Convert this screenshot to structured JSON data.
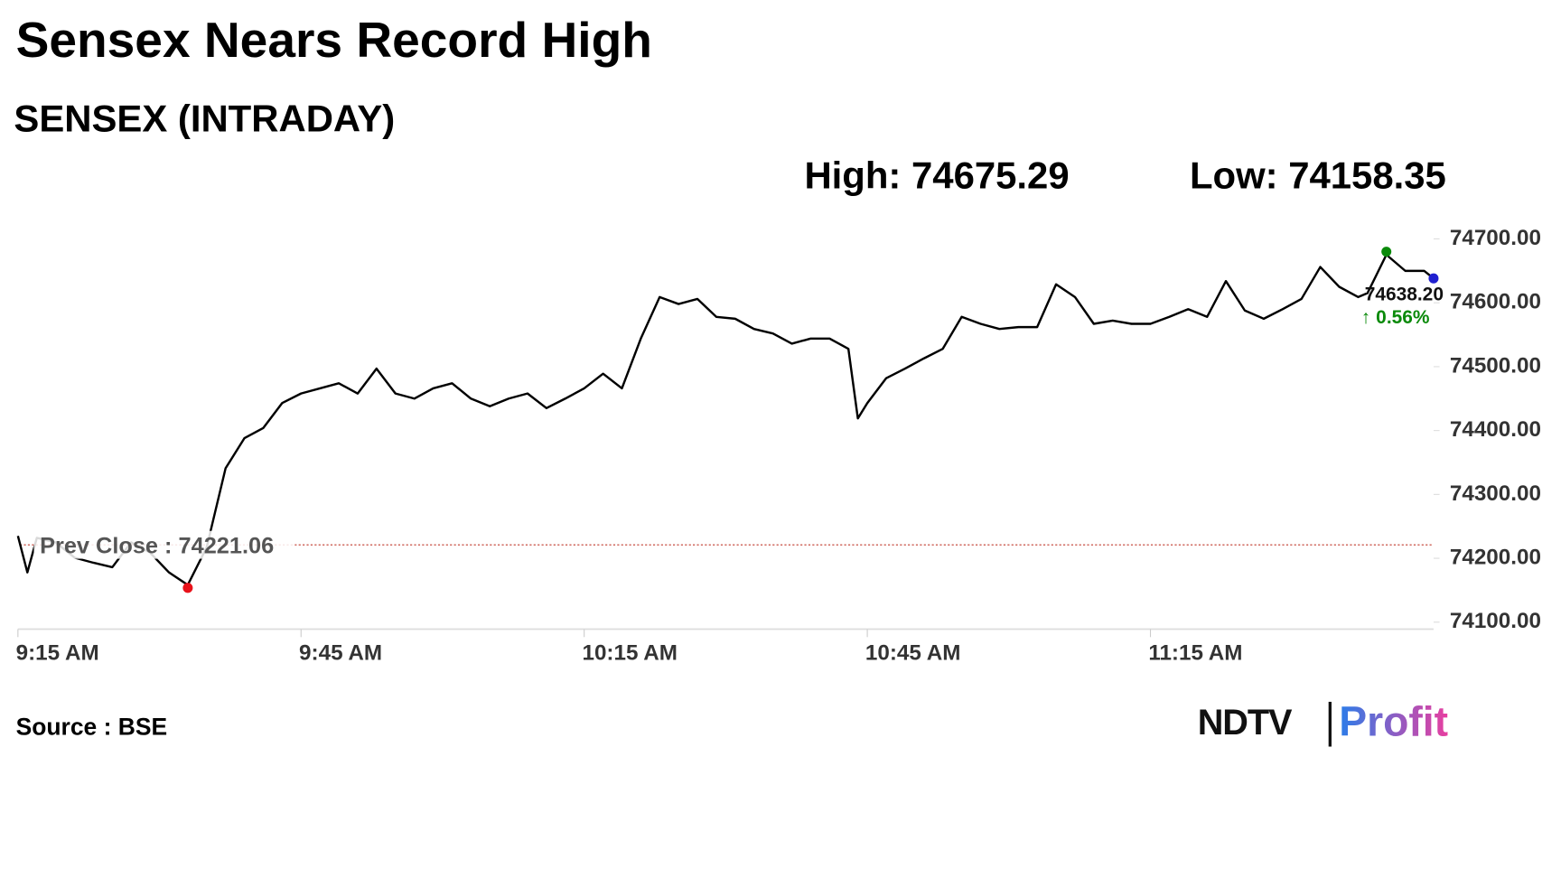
{
  "chart_data": {
    "type": "line",
    "title": "Sensex Nears Record High",
    "subtitle": "SENSEX (INTRADAY)",
    "high": {
      "label": "High:",
      "value": 74675.29
    },
    "low": {
      "label": "Low:",
      "value": 74158.35
    },
    "prev_close": {
      "label": "Prev Close :",
      "value": 74221.06
    },
    "last_label": "74638.20",
    "change_label": "↑ 0.56%",
    "source": "Source : BSE",
    "brand": "NDTV",
    "brand_sub": "Profit",
    "color": "#000000",
    "x": [
      "9:15 AM",
      "9:16 AM",
      "9:17 AM",
      "9:19 AM",
      "9:21 AM",
      "9:23 AM",
      "9:25 AM",
      "9:27 AM",
      "9:29 AM",
      "9:31 AM",
      "9:33 AM",
      "9:35 AM",
      "9:37 AM",
      "9:39 AM",
      "9:41 AM",
      "9:43 AM",
      "9:45 AM",
      "9:47 AM",
      "9:49 AM",
      "9:51 AM",
      "9:53 AM",
      "9:55 AM",
      "9:57 AM",
      "9:59 AM",
      "10:01 AM",
      "10:03 AM",
      "10:05 AM",
      "10:07 AM",
      "10:09 AM",
      "10:11 AM",
      "10:13 AM",
      "10:15 AM",
      "10:17 AM",
      "10:19 AM",
      "10:21 AM",
      "10:23 AM",
      "10:25 AM",
      "10:27 AM",
      "10:29 AM",
      "10:31 AM",
      "10:33 AM",
      "10:35 AM",
      "10:37 AM",
      "10:39 AM",
      "10:41 AM",
      "10:43 AM",
      "10:44 AM",
      "10:45 AM",
      "10:47 AM",
      "10:49 AM",
      "10:51 AM",
      "10:53 AM",
      "10:55 AM",
      "10:57 AM",
      "10:59 AM",
      "11:01 AM",
      "11:03 AM",
      "11:05 AM",
      "11:07 AM",
      "11:09 AM",
      "11:11 AM",
      "11:13 AM",
      "11:15 AM",
      "11:17 AM",
      "11:19 AM",
      "11:21 AM",
      "11:23 AM",
      "11:25 AM",
      "11:27 AM",
      "11:29 AM",
      "11:31 AM",
      "11:33 AM",
      "11:35 AM",
      "11:37 AM",
      "11:38 AM",
      "11:40 AM",
      "11:42 AM",
      "11:44 AM",
      "11:45 AM"
    ],
    "values": [
      74235,
      74178,
      74232,
      74225,
      74201,
      74193,
      74186,
      74225,
      74209,
      74178,
      74158.35,
      74217,
      74341,
      74388,
      74404,
      74443,
      74458,
      74466,
      74474,
      74458,
      74497,
      74458,
      74450,
      74466,
      74474,
      74450,
      74438,
      74450,
      74458,
      74435,
      74450,
      74466,
      74489,
      74466,
      74544,
      74609,
      74598,
      74606,
      74578,
      74575,
      74559,
      74552,
      74536,
      74544,
      74544,
      74528,
      74419,
      74443,
      74482,
      74497,
      74513,
      74528,
      74578,
      74567,
      74559,
      74562,
      74562,
      74629,
      74609,
      74567,
      74572,
      74567,
      74567,
      74578,
      74590,
      74578,
      74634,
      74588,
      74575,
      74590,
      74606,
      74656,
      74625,
      74609,
      74615,
      74675.29,
      74650,
      74650,
      74638.2
    ],
    "xlim": [
      "9:15 AM",
      "11:45 AM"
    ],
    "xticks": [
      "9:15 AM",
      "9:45 AM",
      "10:15 AM",
      "10:45 AM",
      "11:15 AM"
    ],
    "ylim": [
      74100,
      74700
    ],
    "yticks": [
      {
        "value": 74100,
        "label": "74100.00"
      },
      {
        "value": 74200,
        "label": "74200.00"
      },
      {
        "value": 74300,
        "label": "74300.00"
      },
      {
        "value": 74400,
        "label": "74400.00"
      },
      {
        "value": 74500,
        "label": "74500.00"
      },
      {
        "value": 74600,
        "label": "74600.00"
      },
      {
        "value": 74700,
        "label": "74700.00"
      }
    ],
    "grid": false
  }
}
